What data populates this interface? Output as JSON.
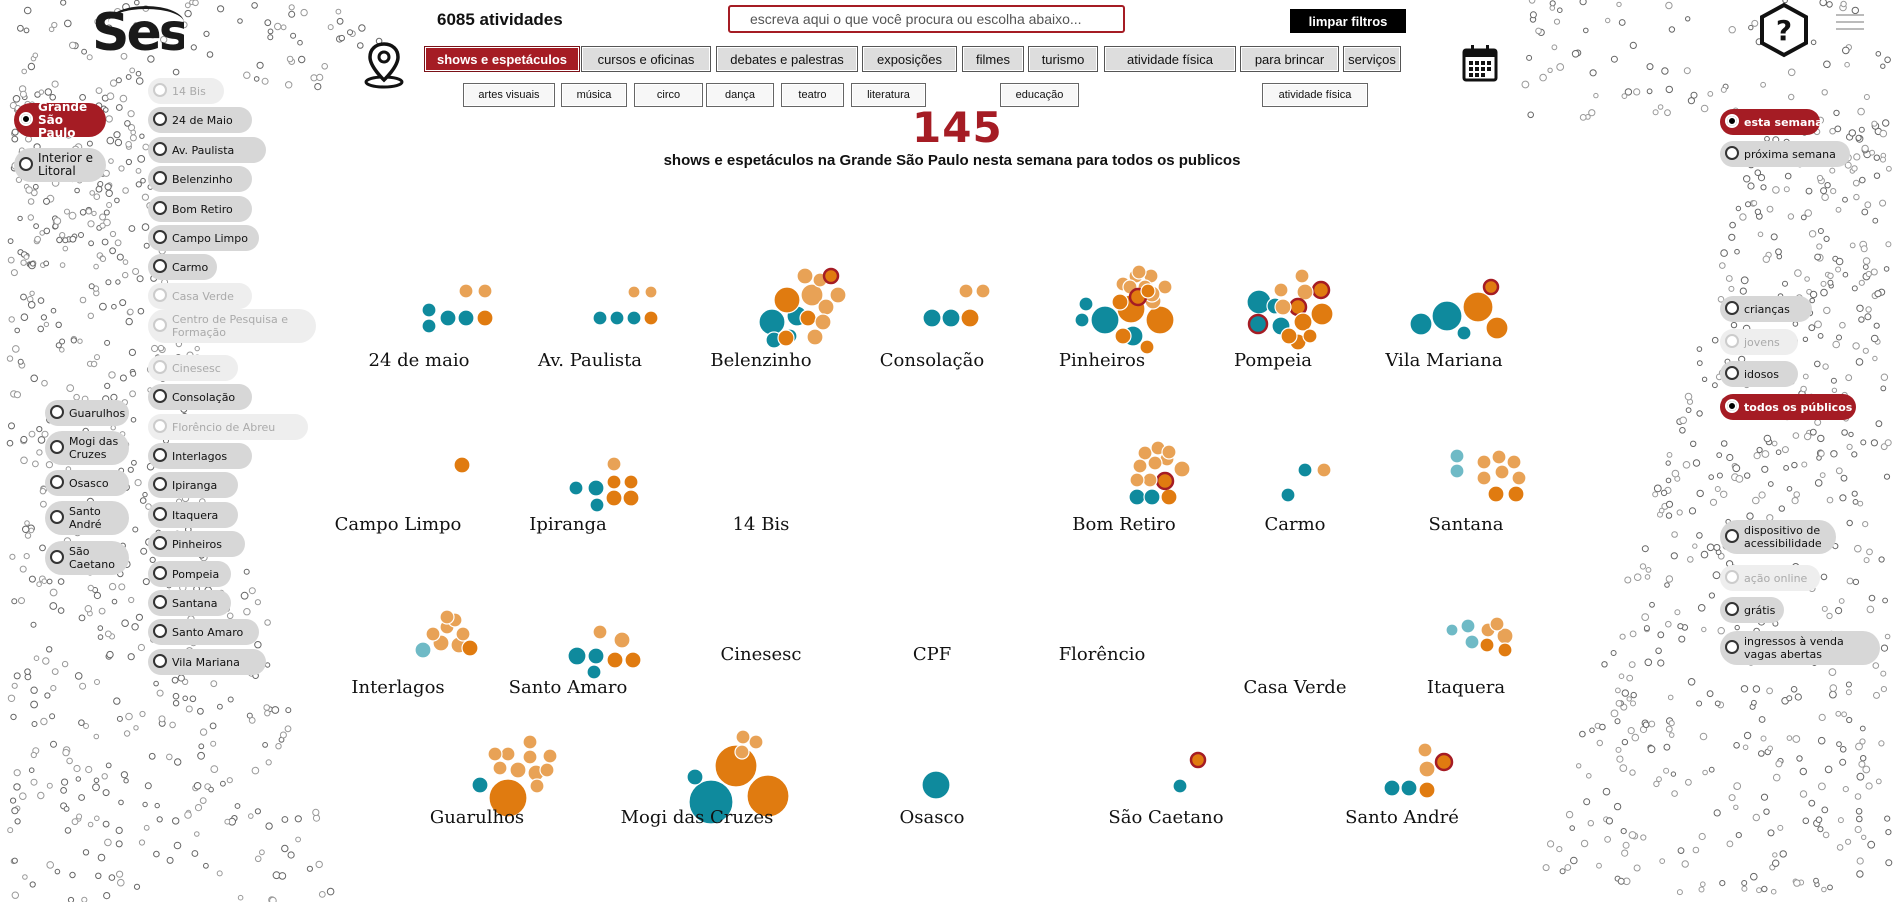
{
  "header": {
    "activity_count": "6085 atividades",
    "search_placeholder": "escreva aqui o que você procura ou escolha abaixo...",
    "clear_label": "limpar filtros",
    "logo_text": "Sesc"
  },
  "categories": [
    {
      "label": "shows e espetáculos",
      "active": true
    },
    {
      "label": "cursos e oficinas"
    },
    {
      "label": "debates e palestras"
    },
    {
      "label": "exposições"
    },
    {
      "label": "filmes"
    },
    {
      "label": "turismo"
    },
    {
      "label": "atividade física"
    },
    {
      "label": "para brincar"
    },
    {
      "label": "serviços"
    }
  ],
  "subcategories": [
    "artes visuais",
    "música",
    "circo",
    "dança",
    "teatro",
    "literatura",
    "educação",
    "atividade física"
  ],
  "summary": {
    "count": "145",
    "text": "shows e espetáculos na Grande São Paulo nesta semana para todos os publicos"
  },
  "regions": [
    {
      "label": "Grande São Paulo",
      "active": true
    },
    {
      "label": "Interior e Litoral"
    }
  ],
  "units_sp": [
    {
      "label": "14 Bis",
      "dim": true
    },
    {
      "label": "24 de Maio"
    },
    {
      "label": "Av. Paulista"
    },
    {
      "label": "Belenzinho"
    },
    {
      "label": "Bom Retiro"
    },
    {
      "label": "Campo Limpo"
    },
    {
      "label": "Carmo"
    },
    {
      "label": "Casa Verde",
      "dim": true
    },
    {
      "label": "Centro de Pesquisa e Formação",
      "dim": true
    },
    {
      "label": "Cinesesc",
      "dim": true
    },
    {
      "label": "Consolação"
    },
    {
      "label": "Florêncio de Abreu",
      "dim": true
    },
    {
      "label": "Interlagos"
    },
    {
      "label": "Ipiranga"
    },
    {
      "label": "Itaquera"
    },
    {
      "label": "Pinheiros"
    },
    {
      "label": "Pompeia"
    },
    {
      "label": "Santana"
    },
    {
      "label": "Santo Amaro"
    },
    {
      "label": "Vila Mariana"
    }
  ],
  "units_metro": [
    {
      "label": "Guarulhos"
    },
    {
      "label": "Mogi das Cruzes"
    },
    {
      "label": "Osasco"
    },
    {
      "label": "Santo André"
    },
    {
      "label": "São Caetano"
    }
  ],
  "periods": [
    {
      "label": "esta semana",
      "active": true
    },
    {
      "label": "próxima semana"
    }
  ],
  "audiences": [
    {
      "label": "crianças"
    },
    {
      "label": "jovens",
      "dim": true
    },
    {
      "label": "idosos"
    },
    {
      "label": "todos os públicos",
      "active": true
    }
  ],
  "extras": [
    {
      "label": "dispositivo de acessibilidade"
    },
    {
      "label": "ação online",
      "dim": true
    },
    {
      "label": "grátis"
    },
    {
      "label": "ingressos à venda vagas abertas"
    }
  ],
  "map_units": [
    "24 de maio",
    "Av. Paulista",
    "Belenzinho",
    "Consolação",
    "Pinheiros",
    "Pompeia",
    "Vila Mariana",
    "Campo Limpo",
    "Ipiranga",
    "14 Bis",
    "Bom Retiro",
    "Carmo",
    "Santana",
    "Interlagos",
    "Santo Amaro",
    "Cinesesc",
    "CPF",
    "Florêncio",
    "Casa Verde",
    "Itaquera",
    "Guarulhos",
    "Mogi das Cruzes",
    "Osasco",
    "São Caetano",
    "Santo André"
  ],
  "colors": {
    "accent": "#a51c24",
    "teal": "#0f8a9d",
    "orange": "#e07b10",
    "light_orange": "#e8a256",
    "light_teal": "#6fbac6"
  },
  "icons": [
    "location-pin-icon",
    "calendar-icon",
    "help-hexagon-icon",
    "hamburger-menu-icon"
  ]
}
